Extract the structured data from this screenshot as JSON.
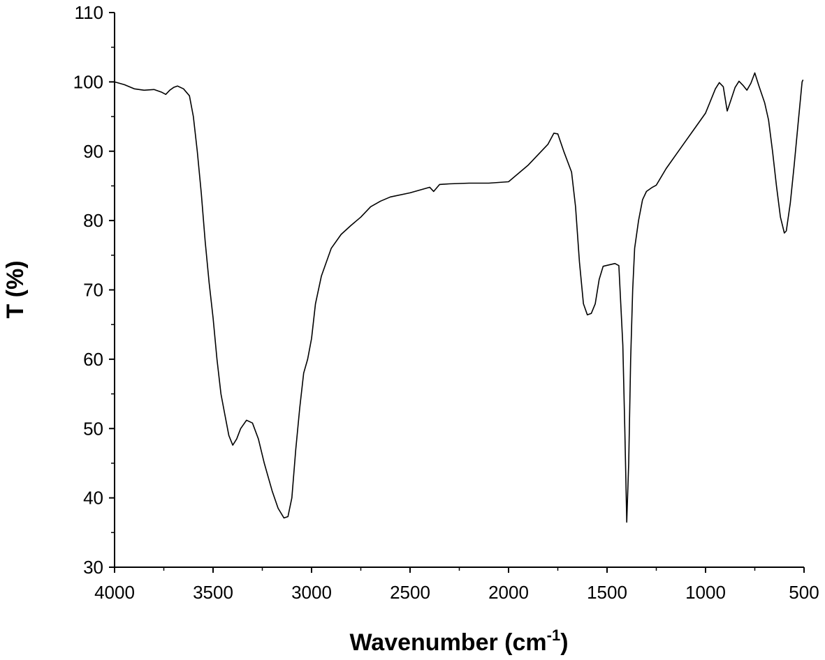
{
  "chart_data": {
    "type": "line",
    "title": "",
    "xlabel": "Wavenumber (cm",
    "xlabel_superscript": "-1",
    "xlabel_suffix": ")",
    "ylabel": "T (%)",
    "xlim": [
      4000,
      500
    ],
    "ylim": [
      30,
      110
    ],
    "x_reversed": true,
    "grid": false,
    "x_ticks": [
      4000,
      3500,
      3000,
      2500,
      2000,
      1500,
      1000,
      500
    ],
    "x_tick_labels": [
      "4000",
      "3500",
      "3000",
      "2500",
      "2000",
      "1500",
      "1000",
      "500"
    ],
    "y_ticks": [
      30,
      40,
      50,
      60,
      70,
      80,
      90,
      100,
      110
    ],
    "y_tick_labels": [
      "30",
      "40",
      "50",
      "60",
      "70",
      "80",
      "90",
      "100",
      "110"
    ],
    "series": [
      {
        "color": "#000000",
        "points": [
          [
            4000,
            100
          ],
          [
            3950,
            99.6
          ],
          [
            3900,
            99.0
          ],
          [
            3850,
            98.8
          ],
          [
            3800,
            98.9
          ],
          [
            3760,
            98.5
          ],
          [
            3740,
            98.2
          ],
          [
            3720,
            98.8
          ],
          [
            3700,
            99.2
          ],
          [
            3680,
            99.4
          ],
          [
            3650,
            99.0
          ],
          [
            3620,
            98.0
          ],
          [
            3600,
            95
          ],
          [
            3580,
            90
          ],
          [
            3560,
            84
          ],
          [
            3540,
            77
          ],
          [
            3520,
            71
          ],
          [
            3500,
            66
          ],
          [
            3480,
            60
          ],
          [
            3460,
            55
          ],
          [
            3440,
            52
          ],
          [
            3420,
            49
          ],
          [
            3400,
            47.6
          ],
          [
            3380,
            48.5
          ],
          [
            3360,
            50
          ],
          [
            3330,
            51.2
          ],
          [
            3300,
            50.8
          ],
          [
            3270,
            48.5
          ],
          [
            3240,
            45
          ],
          [
            3200,
            41
          ],
          [
            3170,
            38.5
          ],
          [
            3140,
            37.1
          ],
          [
            3120,
            37.3
          ],
          [
            3100,
            40
          ],
          [
            3080,
            47
          ],
          [
            3060,
            53
          ],
          [
            3040,
            58
          ],
          [
            3020,
            60
          ],
          [
            3000,
            63
          ],
          [
            2980,
            68
          ],
          [
            2950,
            72
          ],
          [
            2900,
            76
          ],
          [
            2850,
            78
          ],
          [
            2800,
            79.3
          ],
          [
            2750,
            80.5
          ],
          [
            2700,
            82
          ],
          [
            2650,
            82.8
          ],
          [
            2600,
            83.4
          ],
          [
            2500,
            84.0
          ],
          [
            2400,
            84.8
          ],
          [
            2380,
            84.2
          ],
          [
            2350,
            85.2
          ],
          [
            2300,
            85.3
          ],
          [
            2200,
            85.4
          ],
          [
            2100,
            85.4
          ],
          [
            2000,
            85.6
          ],
          [
            1900,
            88.0
          ],
          [
            1850,
            89.5
          ],
          [
            1800,
            91.0
          ],
          [
            1770,
            92.6
          ],
          [
            1750,
            92.5
          ],
          [
            1720,
            90
          ],
          [
            1680,
            87
          ],
          [
            1660,
            82
          ],
          [
            1640,
            74
          ],
          [
            1620,
            68
          ],
          [
            1600,
            66.4
          ],
          [
            1580,
            66.6
          ],
          [
            1560,
            68.0
          ],
          [
            1540,
            71.5
          ],
          [
            1520,
            73.4
          ],
          [
            1490,
            73.6
          ],
          [
            1460,
            73.8
          ],
          [
            1440,
            73.5
          ],
          [
            1420,
            62
          ],
          [
            1410,
            50
          ],
          [
            1400,
            36.5
          ],
          [
            1390,
            45
          ],
          [
            1380,
            60
          ],
          [
            1370,
            70
          ],
          [
            1360,
            76
          ],
          [
            1340,
            80
          ],
          [
            1320,
            83
          ],
          [
            1300,
            84.2
          ],
          [
            1270,
            84.8
          ],
          [
            1250,
            85.1
          ],
          [
            1200,
            87.5
          ],
          [
            1150,
            89.5
          ],
          [
            1100,
            91.5
          ],
          [
            1050,
            93.5
          ],
          [
            1000,
            95.5
          ],
          [
            950,
            99.0
          ],
          [
            930,
            99.9
          ],
          [
            910,
            99.3
          ],
          [
            890,
            95.8
          ],
          [
            870,
            97.5
          ],
          [
            850,
            99.2
          ],
          [
            830,
            100.1
          ],
          [
            810,
            99.5
          ],
          [
            790,
            98.8
          ],
          [
            770,
            99.8
          ],
          [
            750,
            101.3
          ],
          [
            730,
            99.5
          ],
          [
            700,
            97.0
          ],
          [
            680,
            94.5
          ],
          [
            660,
            90.0
          ],
          [
            640,
            85.0
          ],
          [
            620,
            80.5
          ],
          [
            600,
            78.2
          ],
          [
            590,
            78.5
          ],
          [
            570,
            82.5
          ],
          [
            550,
            88.0
          ],
          [
            530,
            94.0
          ],
          [
            510,
            100.0
          ],
          [
            505,
            100.3
          ]
        ]
      }
    ]
  }
}
